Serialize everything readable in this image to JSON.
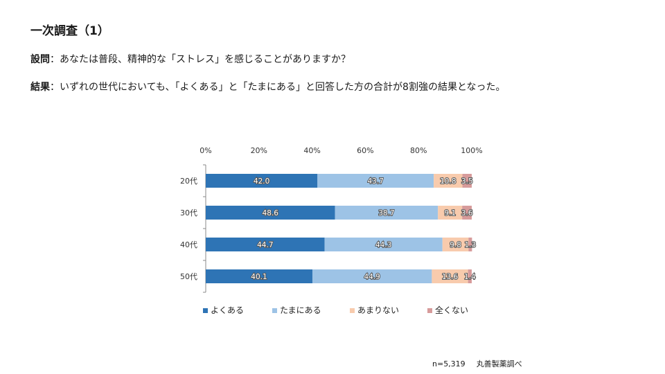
{
  "header": {
    "title": "一次調査（1）",
    "question_label": "設問",
    "question_sep": "：",
    "question_text": "あなたは普段、精神的な「ストレス」を感じることがありますか？",
    "result_label": "結果",
    "result_sep": "：",
    "result_text": "いずれの世代においても、「よくある」と「たまにある」と回答した方の合計が8割強の結果となった。"
  },
  "footer": {
    "sample": "n=5,319",
    "source": "丸善製薬調べ"
  },
  "chart_data": {
    "type": "bar",
    "orientation": "horizontal",
    "stacked": true,
    "percent_axis": true,
    "categories": [
      "20代",
      "30代",
      "40代",
      "50代"
    ],
    "series": [
      {
        "name": "よくある",
        "values": [
          42.0,
          48.6,
          44.7,
          40.1
        ],
        "color": "#2e74b5"
      },
      {
        "name": "たまにある",
        "values": [
          43.7,
          38.7,
          44.3,
          44.9
        ],
        "color": "#9dc3e6"
      },
      {
        "name": "あまりない",
        "values": [
          10.8,
          9.1,
          9.8,
          13.6
        ],
        "color": "#f8cbad"
      },
      {
        "name": "全くない",
        "values": [
          3.5,
          3.6,
          1.3,
          1.4
        ],
        "color": "#d79b9b"
      }
    ],
    "xlim": [
      0,
      100
    ],
    "xticks": [
      "0%",
      "20%",
      "40%",
      "60%",
      "80%",
      "100%"
    ],
    "legend_position": "bottom",
    "grid": false
  }
}
